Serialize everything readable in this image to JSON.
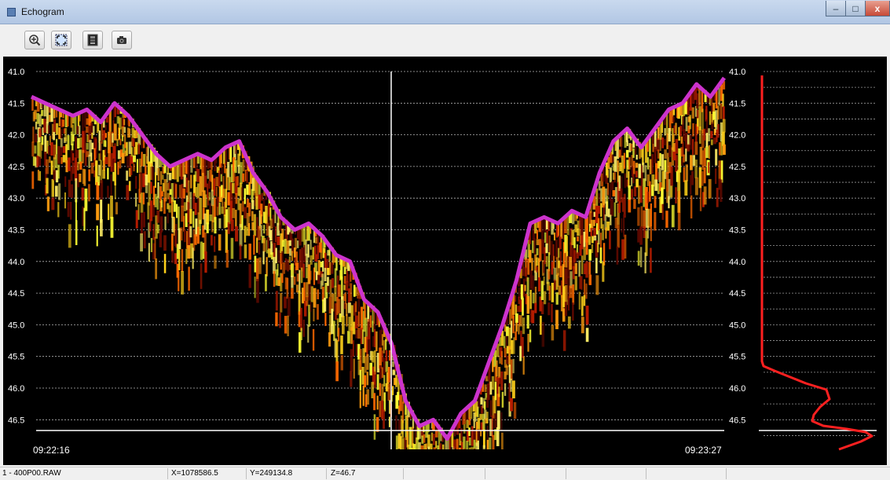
{
  "window": {
    "title": "Echogram"
  },
  "titlebar_buttons": {
    "minimize": "–",
    "maximize": "□",
    "close": "x"
  },
  "toolbar": {
    "buttons": [
      {
        "name": "zoom-in-icon"
      },
      {
        "name": "fit-view-icon"
      },
      {
        "name": "color-scale-icon"
      },
      {
        "name": "camera-icon"
      }
    ]
  },
  "echogram": {
    "depth_labels": [
      "41.0",
      "41.5",
      "42.0",
      "42.5",
      "43.0",
      "43.5",
      "44.0",
      "44.5",
      "45.0",
      "45.5",
      "46.0",
      "46.5"
    ],
    "time_start": "09:22:16",
    "time_end": "09:23:27",
    "colors": {
      "background": "#000000",
      "bottom_line": "#cc33cc",
      "cursor": "#ffffff",
      "grid": "#ffffff",
      "profile": "#ff2020"
    },
    "bottom_trace_depths": [
      41.4,
      41.5,
      41.6,
      41.7,
      41.6,
      41.8,
      41.5,
      41.7,
      42.0,
      42.3,
      42.5,
      42.4,
      42.3,
      42.4,
      42.2,
      42.1,
      42.6,
      42.9,
      43.3,
      43.5,
      43.4,
      43.6,
      43.9,
      44.0,
      44.6,
      44.8,
      45.3,
      46.2,
      46.6,
      46.5,
      46.8,
      46.4,
      46.2,
      45.6,
      45.0,
      44.3,
      43.4,
      43.3,
      43.4,
      43.2,
      43.3,
      42.6,
      42.1,
      41.9,
      42.2,
      41.9,
      41.6,
      41.5,
      41.2,
      41.4,
      41.1
    ]
  },
  "status": {
    "file": "1 - 400P00.RAW",
    "x": "X=1078586.5",
    "y": "Y=249134.8",
    "z": "Z=46.7"
  }
}
